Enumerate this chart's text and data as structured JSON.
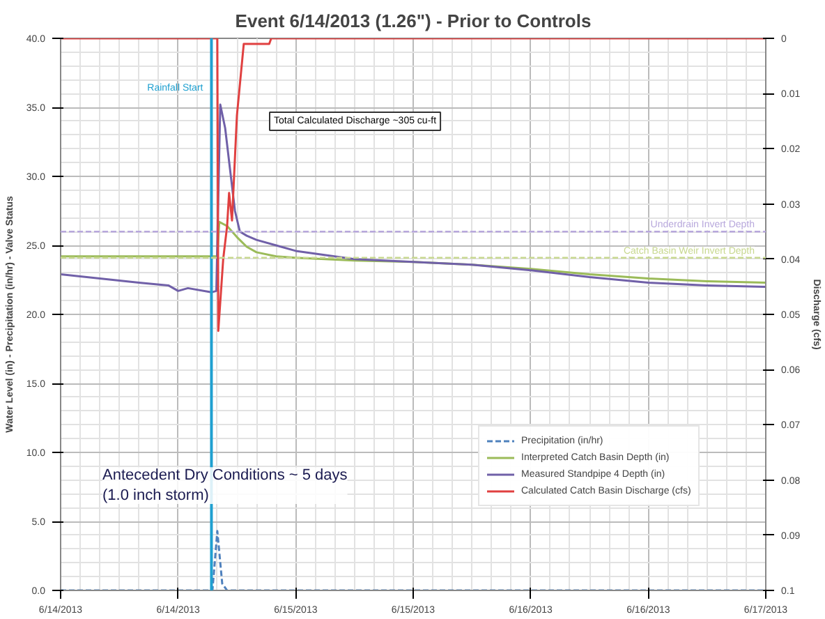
{
  "chart_data": {
    "type": "line",
    "title": "Event 6/14/2013 (1.26\") - Prior to Controls",
    "ylabel": "Water Level (in) - Precipitation (in/hr) - Valve Status",
    "y2label": "Discharge (cfs)",
    "xlim": [
      "2013-06-14T00:00",
      "2013-06-17T00:00"
    ],
    "xticks": [
      {
        "value": "2013-06-14T00:00",
        "label": "6/14/2013"
      },
      {
        "value": "2013-06-14T12:00",
        "label": "6/14/2013"
      },
      {
        "value": "2013-06-15T00:00",
        "label": "6/15/2013"
      },
      {
        "value": "2013-06-15T12:00",
        "label": "6/15/2013"
      },
      {
        "value": "2013-06-16T00:00",
        "label": "6/16/2013"
      },
      {
        "value": "2013-06-16T12:00",
        "label": "6/16/2013"
      },
      {
        "value": "2013-06-17T00:00",
        "label": "6/17/2013"
      }
    ],
    "ylim": [
      0,
      40
    ],
    "yticks": [
      {
        "value": 0,
        "label": "0.0"
      },
      {
        "value": 5,
        "label": "5.0"
      },
      {
        "value": 10,
        "label": "10.0"
      },
      {
        "value": 15,
        "label": "15.0"
      },
      {
        "value": 20,
        "label": "20.0"
      },
      {
        "value": 25,
        "label": "25.0"
      },
      {
        "value": 30,
        "label": "30.0"
      },
      {
        "value": 35,
        "label": "35.0"
      },
      {
        "value": 40,
        "label": "40.0"
      }
    ],
    "y2lim": [
      0.1,
      0
    ],
    "y2ticks": [
      0,
      0.01,
      0.02,
      0.03,
      0.04,
      0.05,
      0.06,
      0.07,
      0.08,
      0.09,
      0.1
    ],
    "grid": true,
    "legend": "right",
    "series": [
      {
        "name": "Precipitation (in/hr)",
        "color": "#4f81bd",
        "line_style": "dashed",
        "x": [
          "2013-06-14T00:00",
          "2013-06-14T15:30",
          "2013-06-14T16:00",
          "2013-06-14T16:30",
          "2013-06-14T17:00",
          "2013-06-17T00:00"
        ],
        "values": [
          0,
          0,
          4.3,
          0.5,
          0,
          0
        ]
      },
      {
        "name": "Interpreted Catch Basin Depth (in)",
        "color": "#9bbb59",
        "x": [
          "2013-06-14T00:00",
          "2013-06-14T16:00",
          "2013-06-14T16:12",
          "2013-06-14T17:00",
          "2013-06-14T18:00",
          "2013-06-14T19:00",
          "2013-06-14T20:00",
          "2013-06-14T22:00",
          "2013-06-15T00:00",
          "2013-06-15T06:00",
          "2013-06-15T12:00",
          "2013-06-15T18:00",
          "2013-06-16T00:00",
          "2013-06-16T06:00",
          "2013-06-16T12:00",
          "2013-06-16T18:00",
          "2013-06-17T00:00"
        ],
        "values": [
          24.2,
          24.2,
          26.7,
          26.4,
          25.6,
          24.9,
          24.5,
          24.2,
          24.1,
          23.9,
          23.8,
          23.6,
          23.3,
          22.9,
          22.6,
          22.4,
          22.3
        ]
      },
      {
        "name": "Measured Standpipe 4 Depth (in)",
        "color": "#7060a8",
        "x": [
          "2013-06-14T00:00",
          "2013-06-14T04:00",
          "2013-06-14T08:00",
          "2013-06-14T11:00",
          "2013-06-14T12:00",
          "2013-06-14T13:00",
          "2013-06-14T15:24",
          "2013-06-14T15:54",
          "2013-06-14T16:18",
          "2013-06-14T16:48",
          "2013-06-14T17:18",
          "2013-06-14T17:48",
          "2013-06-14T18:18",
          "2013-06-14T19:00",
          "2013-06-14T20:00",
          "2013-06-14T22:00",
          "2013-06-15T00:00",
          "2013-06-15T06:00",
          "2013-06-15T12:00",
          "2013-06-15T18:00",
          "2013-06-16T00:00",
          "2013-06-16T06:00",
          "2013-06-16T12:00",
          "2013-06-16T18:00",
          "2013-06-17T00:00"
        ],
        "values": [
          22.9,
          22.6,
          22.3,
          22.1,
          21.7,
          21.9,
          21.6,
          21.7,
          35.2,
          33.5,
          30.5,
          27.5,
          26.0,
          25.7,
          25.4,
          25.0,
          24.6,
          24.0,
          23.8,
          23.6,
          23.2,
          22.7,
          22.3,
          22.1,
          22.0
        ]
      },
      {
        "name": "Calculated Catch Basin Discharge (cfs)",
        "color": "#e04040",
        "axis": "y2",
        "x": [
          "2013-06-14T00:00",
          "2013-06-14T16:00",
          "2013-06-14T16:06",
          "2013-06-14T16:36",
          "2013-06-14T17:00",
          "2013-06-14T17:12",
          "2013-06-14T17:30",
          "2013-06-14T18:00",
          "2013-06-14T18:42",
          "2013-06-14T21:18",
          "2013-06-14T21:30",
          "2013-06-17T00:00"
        ],
        "values": [
          0,
          0,
          0.053,
          0.04,
          0.034,
          0.028,
          0.033,
          0.014,
          0.001,
          0.001,
          0,
          0
        ]
      }
    ],
    "ref_lines": [
      {
        "axis": "x",
        "value": "2013-06-14T15:24",
        "label": "Rainfall Start",
        "color": "#1fa0d0",
        "line_style": "solid"
      },
      {
        "axis": "y",
        "value": 26.0,
        "label": "Underdrain Invert Depth",
        "color": "#b8a8dc",
        "line_style": "dashed"
      },
      {
        "axis": "y",
        "value": 24.1,
        "label": "Catch Basin Weir Invert Depth",
        "color": "#c8d890",
        "line_style": "dashed"
      }
    ],
    "annotations": [
      "Total Calculated Discharge ~305 cu-ft",
      "Antecedent Dry Conditions ~ 5 days\n(1.0 inch storm)"
    ]
  }
}
